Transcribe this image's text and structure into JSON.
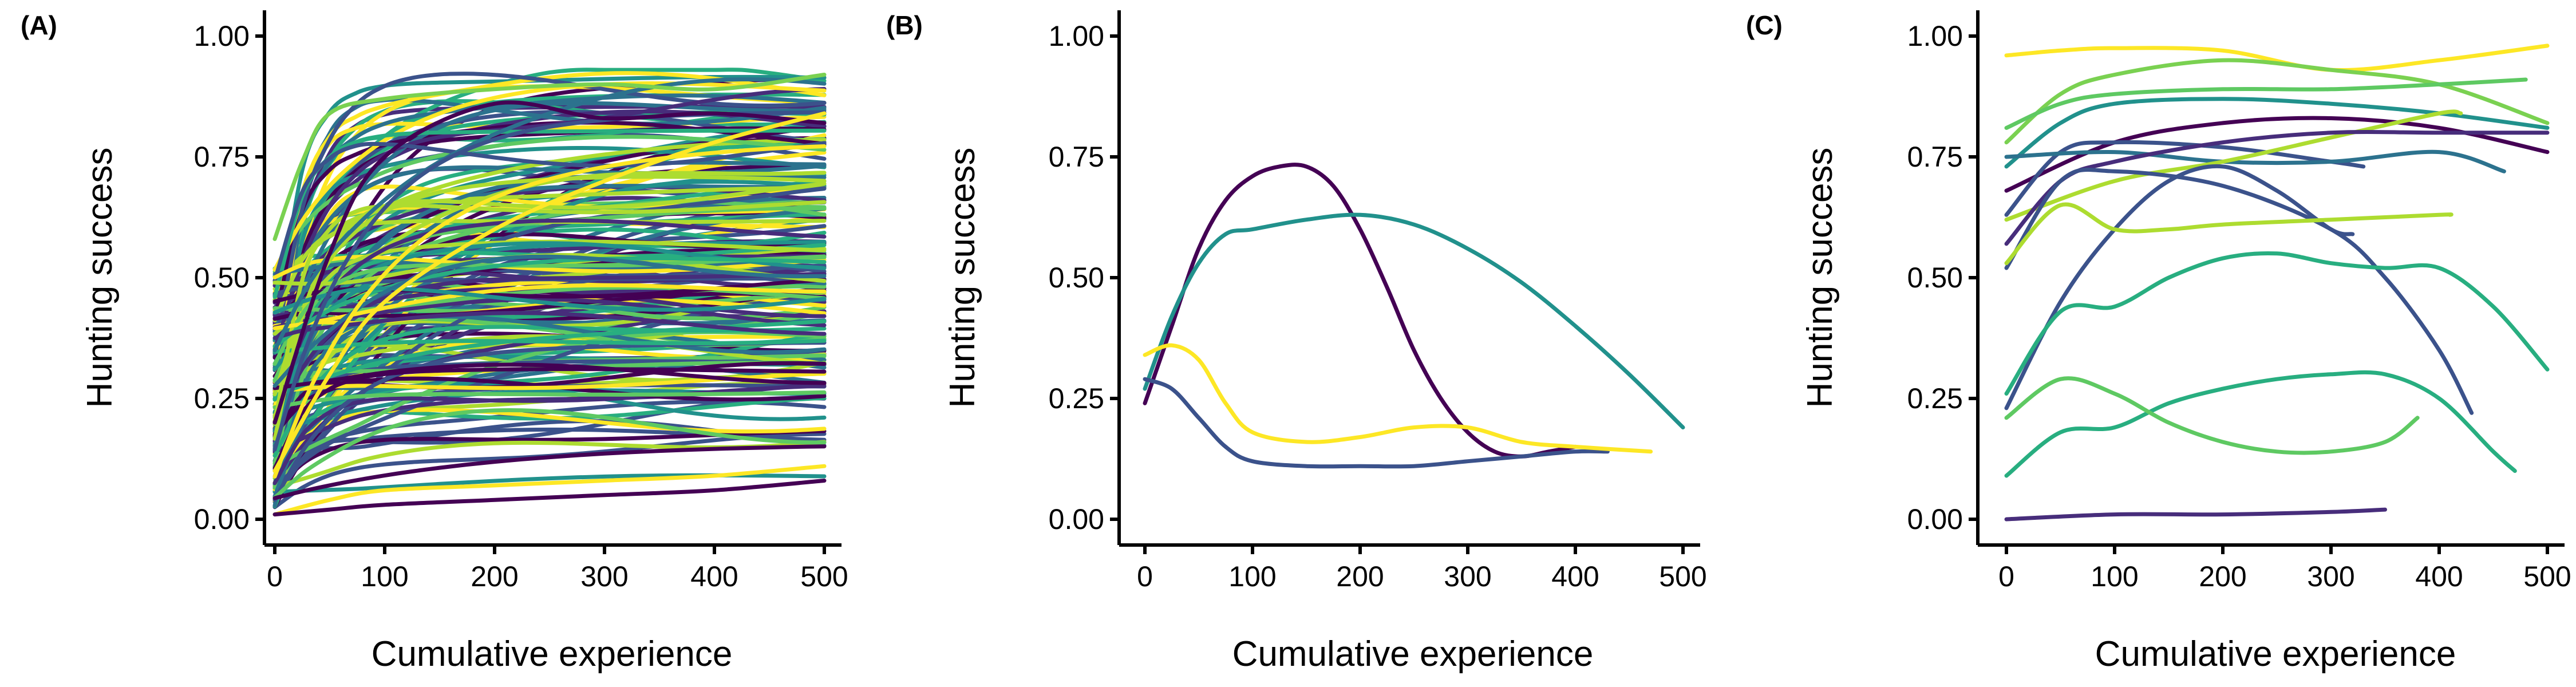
{
  "palette": [
    "#440154",
    "#472d7b",
    "#3b528b",
    "#2c728e",
    "#21918c",
    "#28ae80",
    "#5ec962",
    "#addc30",
    "#fde725"
  ],
  "chart_data": [
    {
      "type": "line",
      "panel_label": "(A)",
      "xlabel": "Cumulative experience",
      "ylabel": "Hunting success",
      "xlim": [
        0,
        500
      ],
      "ylim": [
        0,
        1
      ],
      "xticks": [
        0,
        100,
        200,
        300,
        400,
        500
      ],
      "xtick_labels": [
        "0",
        "100",
        "200",
        "300",
        "400",
        "500"
      ],
      "yticks": [
        0,
        0.25,
        0.5,
        0.75,
        1
      ],
      "ytick_labels": [
        "0.00",
        "0.25",
        "0.50",
        "0.75",
        "1.00"
      ],
      "grid": false,
      "legend": "none",
      "generated_curves": 190,
      "series": [
        {
          "color": "#fde725",
          "x": [
            0,
            50,
            100,
            200,
            300,
            400,
            500
          ],
          "y": [
            0.01,
            0.04,
            0.06,
            0.07,
            0.08,
            0.09,
            0.11
          ]
        },
        {
          "color": "#440154",
          "x": [
            0,
            50,
            100,
            200,
            300,
            400,
            500
          ],
          "y": [
            0.01,
            0.02,
            0.03,
            0.04,
            0.05,
            0.06,
            0.08
          ]
        },
        {
          "color": "#7ad151",
          "x": [
            0,
            25,
            50,
            100,
            200,
            300,
            400,
            500
          ],
          "y": [
            0.58,
            0.74,
            0.84,
            0.87,
            0.89,
            0.9,
            0.89,
            0.92
          ]
        },
        {
          "color": "#440154",
          "x": [
            0,
            50,
            100,
            200,
            300,
            400,
            500
          ],
          "y": [
            0.2,
            0.55,
            0.75,
            0.86,
            0.83,
            0.84,
            0.82
          ]
        },
        {
          "color": "#fde725",
          "x": [
            0,
            50,
            100,
            200,
            300,
            400,
            500
          ],
          "y": [
            0.1,
            0.3,
            0.45,
            0.6,
            0.7,
            0.78,
            0.84
          ]
        }
      ]
    },
    {
      "type": "line",
      "panel_label": "(B)",
      "xlabel": "Cumulative experience",
      "ylabel": "Hunting success",
      "xlim": [
        0,
        500
      ],
      "ylim": [
        0,
        1
      ],
      "xticks": [
        0,
        100,
        200,
        300,
        400,
        500
      ],
      "xtick_labels": [
        "0",
        "100",
        "200",
        "300",
        "400",
        "500"
      ],
      "yticks": [
        0,
        0.25,
        0.5,
        0.75,
        1
      ],
      "ytick_labels": [
        "0.00",
        "0.25",
        "0.50",
        "0.75",
        "1.00"
      ],
      "grid": false,
      "legend": "none",
      "series": [
        {
          "color": "#440154",
          "x": [
            0,
            25,
            50,
            75,
            100,
            125,
            150,
            175,
            200,
            225,
            250,
            275,
            300,
            325,
            350,
            375,
            400
          ],
          "y": [
            0.24,
            0.4,
            0.56,
            0.66,
            0.71,
            0.73,
            0.73,
            0.69,
            0.6,
            0.48,
            0.35,
            0.25,
            0.18,
            0.14,
            0.13,
            0.14,
            0.15
          ]
        },
        {
          "color": "#21918c",
          "x": [
            0,
            25,
            50,
            75,
            100,
            150,
            200,
            250,
            300,
            350,
            400,
            450,
            500
          ],
          "y": [
            0.27,
            0.42,
            0.53,
            0.59,
            0.6,
            0.62,
            0.63,
            0.61,
            0.56,
            0.49,
            0.4,
            0.3,
            0.19
          ]
        },
        {
          "color": "#3b528b",
          "x": [
            0,
            25,
            50,
            75,
            100,
            150,
            200,
            250,
            300,
            350,
            400,
            430
          ],
          "y": [
            0.29,
            0.27,
            0.21,
            0.15,
            0.12,
            0.11,
            0.11,
            0.11,
            0.12,
            0.13,
            0.14,
            0.14
          ]
        },
        {
          "color": "#fde725",
          "x": [
            0,
            25,
            50,
            75,
            100,
            150,
            200,
            250,
            300,
            350,
            400,
            470
          ],
          "y": [
            0.34,
            0.36,
            0.33,
            0.24,
            0.18,
            0.16,
            0.17,
            0.19,
            0.19,
            0.16,
            0.15,
            0.14
          ]
        }
      ]
    },
    {
      "type": "line",
      "panel_label": "(C)",
      "xlabel": "Cumulative experience",
      "ylabel": "Hunting success",
      "xlim": [
        0,
        500
      ],
      "ylim": [
        0,
        1
      ],
      "xticks": [
        0,
        100,
        200,
        300,
        400,
        500
      ],
      "xtick_labels": [
        "0",
        "100",
        "200",
        "300",
        "400",
        "500"
      ],
      "yticks": [
        0,
        0.25,
        0.5,
        0.75,
        1
      ],
      "ytick_labels": [
        "0.00",
        "0.25",
        "0.50",
        "0.75",
        "1.00"
      ],
      "grid": false,
      "legend": "none",
      "series": [
        {
          "color": "#fde725",
          "x": [
            0,
            50,
            100,
            200,
            300,
            400,
            500
          ],
          "y": [
            0.96,
            0.97,
            0.975,
            0.97,
            0.93,
            0.95,
            0.98
          ]
        },
        {
          "color": "#7ad151",
          "x": [
            0,
            50,
            100,
            200,
            300,
            400,
            500
          ],
          "y": [
            0.78,
            0.88,
            0.92,
            0.95,
            0.93,
            0.9,
            0.82
          ]
        },
        {
          "color": "#5ec962",
          "x": [
            0,
            50,
            100,
            200,
            300,
            400,
            480
          ],
          "y": [
            0.81,
            0.86,
            0.88,
            0.89,
            0.89,
            0.9,
            0.91
          ]
        },
        {
          "color": "#21918c",
          "x": [
            0,
            50,
            100,
            200,
            300,
            400,
            500
          ],
          "y": [
            0.73,
            0.82,
            0.86,
            0.87,
            0.86,
            0.84,
            0.81
          ]
        },
        {
          "color": "#440154",
          "x": [
            0,
            100,
            200,
            300,
            400,
            500
          ],
          "y": [
            0.68,
            0.78,
            0.82,
            0.83,
            0.81,
            0.76
          ]
        },
        {
          "color": "#3b528b",
          "x": [
            0,
            50,
            100,
            200,
            300,
            330
          ],
          "y": [
            0.63,
            0.76,
            0.78,
            0.77,
            0.74,
            0.73
          ]
        },
        {
          "color": "#2c728e",
          "x": [
            0,
            100,
            200,
            300,
            400,
            460
          ],
          "y": [
            0.75,
            0.76,
            0.74,
            0.74,
            0.76,
            0.72
          ]
        },
        {
          "color": "#addc30",
          "x": [
            0,
            100,
            200,
            300,
            400,
            420
          ],
          "y": [
            0.62,
            0.7,
            0.74,
            0.79,
            0.84,
            0.84
          ]
        },
        {
          "color": "#472d7b",
          "x": [
            0,
            50,
            100,
            200,
            300,
            400,
            500
          ],
          "y": [
            0.57,
            0.7,
            0.74,
            0.78,
            0.8,
            0.8,
            0.8
          ]
        },
        {
          "color": "#3b528b",
          "x": [
            0,
            50,
            100,
            200,
            300,
            350,
            400,
            430
          ],
          "y": [
            0.52,
            0.7,
            0.72,
            0.69,
            0.6,
            0.5,
            0.35,
            0.22
          ]
        },
        {
          "color": "#3b528b",
          "x": [
            0,
            50,
            100,
            150,
            200,
            250,
            300,
            320
          ],
          "y": [
            0.23,
            0.45,
            0.6,
            0.7,
            0.73,
            0.68,
            0.6,
            0.59
          ]
        },
        {
          "color": "#addc30",
          "x": [
            0,
            50,
            100,
            150,
            200,
            300,
            400,
            410
          ],
          "y": [
            0.53,
            0.65,
            0.6,
            0.6,
            0.61,
            0.62,
            0.63,
            0.63
          ]
        },
        {
          "color": "#28ae80",
          "x": [
            0,
            50,
            100,
            150,
            200,
            250,
            300,
            350,
            400,
            450,
            500
          ],
          "y": [
            0.26,
            0.43,
            0.44,
            0.5,
            0.54,
            0.55,
            0.53,
            0.52,
            0.52,
            0.44,
            0.31
          ]
        },
        {
          "color": "#28ae80",
          "x": [
            0,
            50,
            100,
            150,
            200,
            250,
            300,
            350,
            400,
            450,
            470
          ],
          "y": [
            0.09,
            0.18,
            0.19,
            0.24,
            0.27,
            0.29,
            0.3,
            0.3,
            0.25,
            0.14,
            0.1
          ]
        },
        {
          "color": "#5ec962",
          "x": [
            0,
            50,
            100,
            150,
            200,
            250,
            300,
            350,
            380
          ],
          "y": [
            0.21,
            0.29,
            0.26,
            0.2,
            0.16,
            0.14,
            0.14,
            0.16,
            0.21
          ]
        },
        {
          "color": "#472d7b",
          "x": [
            0,
            100,
            200,
            300,
            350
          ],
          "y": [
            0.0,
            0.01,
            0.01,
            0.015,
            0.02
          ]
        }
      ]
    }
  ]
}
